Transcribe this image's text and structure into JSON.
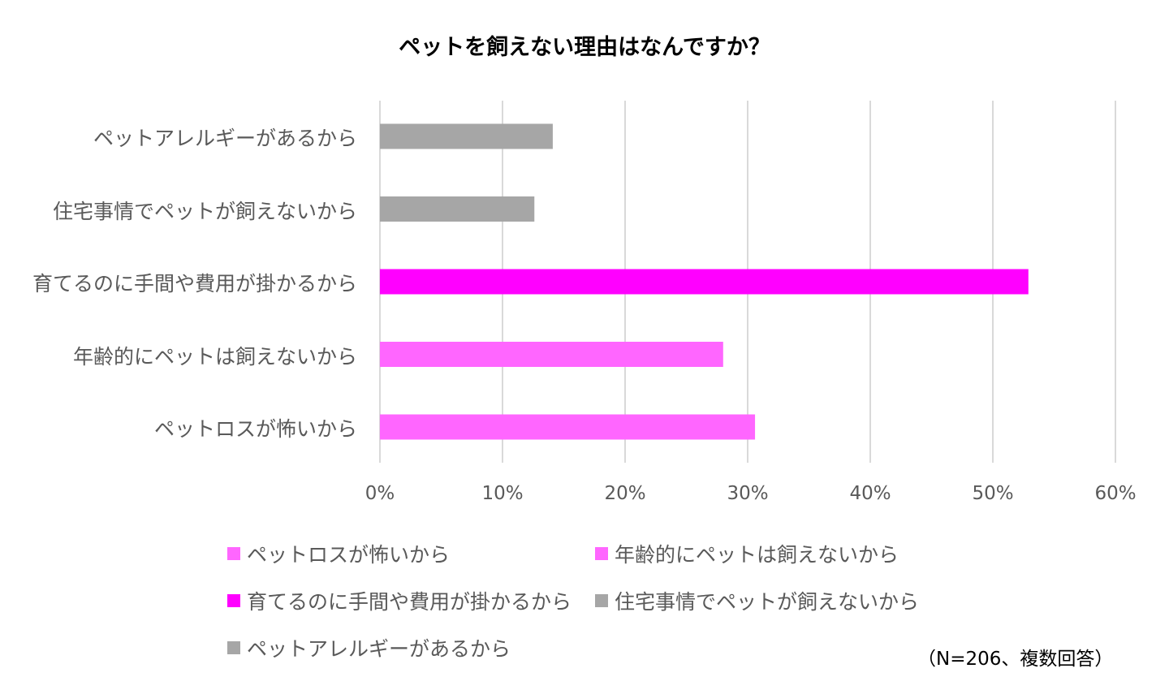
{
  "chart_data": {
    "type": "bar",
    "orientation": "horizontal",
    "title": "ペットを飼えない理由はなんですか？",
    "categories": [
      "ペットアレルギーがあるから",
      "住宅事情でペットが飼えないから",
      "育てるのに手間や費用が掛かるから",
      "年齢的にペットは飼えないから",
      "ペットロスが怖いから"
    ],
    "values": [
      14.1,
      12.6,
      52.9,
      28.0,
      30.6
    ],
    "colors": [
      "#a6a6a6",
      "#a6a6a6",
      "#ff00ff",
      "#ff66ff",
      "#ff66ff"
    ],
    "xlim": [
      0,
      60
    ],
    "xticks": [
      "0%",
      "10%",
      "20%",
      "30%",
      "40%",
      "50%",
      "60%"
    ],
    "grid": true,
    "legend_position": "bottom",
    "legend": [
      {
        "label": "ペットロスが怖いから",
        "color": "#ff66ff"
      },
      {
        "label": "年齢的にペットは飼えないから",
        "color": "#ff66ff"
      },
      {
        "label": "育てるのに手間や費用が掛かるから",
        "color": "#ff00ff"
      },
      {
        "label": "住宅事情でペットが飼えないから",
        "color": "#a6a6a6"
      },
      {
        "label": "ペットアレルギーがあるから",
        "color": "#a6a6a6"
      }
    ],
    "note": "（N=206、複数回答）"
  }
}
